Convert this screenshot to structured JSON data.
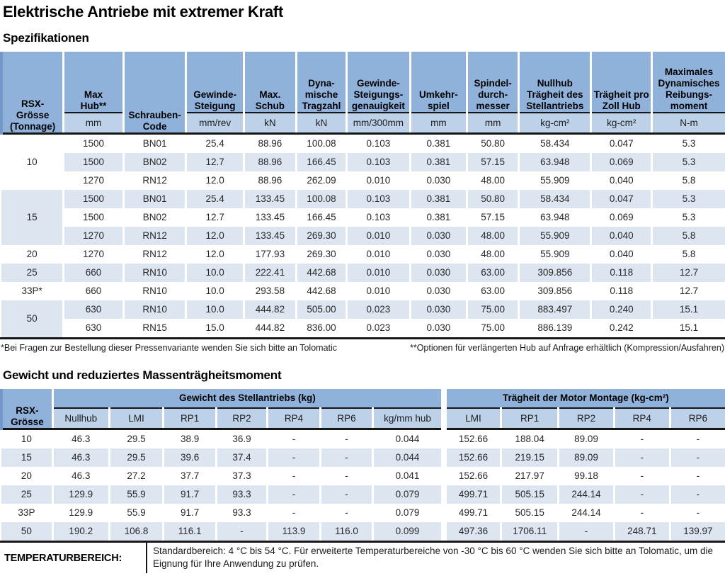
{
  "page": {
    "title": "Elektrische Antriebe mit extremer Kraft",
    "section1_title": "Spezifikationen",
    "section2_title": "Gewicht und reduziertes Massenträgheitsmoment",
    "footnote_left": "*Bei Fragen zur Bestellung dieser Pressenvariante wenden Sie sich bitte an Tolomatic",
    "footnote_right": "**Optionen für verlängerten Hub auf Anfrage erhältlich (Kompression/Ausfahren)",
    "temperature": {
      "label": "TEMPERATURBEREICH:",
      "text": "Standardbereich: 4 °C bis 54 °C. Für erweiterte Temperaturbereiche von -30 °C bis 60 °C wenden Sie sich bitte an Tolomatic, um die Eignung für Ihre Anwendung zu prüfen."
    }
  },
  "colors": {
    "header_blue": "#8FB1DA",
    "unit_blue": "#BDD1E9",
    "stripe_blue": "#DDE5F1",
    "rule_black": "#161616"
  },
  "spec_table": {
    "columns": [
      {
        "label": "RSX-\nGrösse\n(Tonnage)",
        "unit": null
      },
      {
        "label": "Max\nHub**",
        "unit": "mm"
      },
      {
        "label": "Schrauben-\nCode",
        "unit": null
      },
      {
        "label": "Gewinde-\nSteigung",
        "unit": "mm/rev"
      },
      {
        "label": "Max.\nSchub",
        "unit": "kN"
      },
      {
        "label": "Dyna-\nmische\nTragzahl",
        "unit": "kN"
      },
      {
        "label": "Gewinde-\nSteigungs-\ngenauigkeit",
        "unit": "mm/300mm"
      },
      {
        "label": "Umkehr-\nspiel",
        "unit": "mm"
      },
      {
        "label": "Spindel-\ndurch-\nmesser",
        "unit": "mm"
      },
      {
        "label": "Nullhub\nTrägheit des\nStellantriebs",
        "unit": "kg-cm²"
      },
      {
        "label": "Trägheit pro\nZoll Hub",
        "unit": "kg-cm²"
      },
      {
        "label": "Maximales\nDynamisches\nReibungs-\nmoment",
        "unit": "N-m"
      }
    ],
    "groups": [
      {
        "size": "10",
        "rows": [
          [
            "1500",
            "BN01",
            "25.4",
            "88.96",
            "100.08",
            "0.103",
            "0.381",
            "50.80",
            "58.434",
            "0.047",
            "5.3"
          ],
          [
            "1500",
            "BN02",
            "12.7",
            "88.96",
            "166.45",
            "0.103",
            "0.381",
            "57.15",
            "63.948",
            "0.069",
            "5.3"
          ],
          [
            "1270",
            "RN12",
            "12.0",
            "88.96",
            "262.09",
            "0.010",
            "0.030",
            "48.00",
            "55.909",
            "0.040",
            "5.8"
          ]
        ]
      },
      {
        "size": "15",
        "rows": [
          [
            "1500",
            "BN01",
            "25.4",
            "133.45",
            "100.08",
            "0.103",
            "0.381",
            "50.80",
            "58.434",
            "0.047",
            "5.3"
          ],
          [
            "1500",
            "BN02",
            "12.7",
            "133.45",
            "166.45",
            "0.103",
            "0.381",
            "57.15",
            "63.948",
            "0.069",
            "5.3"
          ],
          [
            "1270",
            "RN12",
            "12.0",
            "133.45",
            "269.30",
            "0.010",
            "0.030",
            "48.00",
            "55.909",
            "0.040",
            "5.8"
          ]
        ]
      },
      {
        "size": "20",
        "rows": [
          [
            "1270",
            "RN12",
            "12.0",
            "177.93",
            "269.30",
            "0.010",
            "0.030",
            "48.00",
            "55.909",
            "0.040",
            "5.8"
          ]
        ]
      },
      {
        "size": "25",
        "rows": [
          [
            "660",
            "RN10",
            "10.0",
            "222.41",
            "442.68",
            "0.010",
            "0.030",
            "63.00",
            "309.856",
            "0.118",
            "12.7"
          ]
        ]
      },
      {
        "size": "33P*",
        "rows": [
          [
            "660",
            "RN10",
            "10.0",
            "293.58",
            "442.68",
            "0.010",
            "0.030",
            "63.00",
            "309.856",
            "0.118",
            "12.7"
          ]
        ]
      },
      {
        "size": "50",
        "rows": [
          [
            "630",
            "RN10",
            "10.0",
            "444.82",
            "505.00",
            "0.023",
            "0.030",
            "75.00",
            "883.497",
            "0.240",
            "15.1"
          ],
          [
            "630",
            "RN15",
            "15.0",
            "444.82",
            "836.00",
            "0.023",
            "0.030",
            "75.00",
            "886.139",
            "0.242",
            "15.1"
          ]
        ]
      }
    ]
  },
  "weight_table": {
    "corner_label": "RSX-\nGrösse",
    "group1": {
      "label": "Gewicht des Stellantriebs (kg)",
      "sub": [
        "Nullhub",
        "LMI",
        "RP1",
        "RP2",
        "RP4",
        "RP6",
        "kg/mm hub"
      ]
    },
    "group2": {
      "label": "Trägheit der Motor Montage (kg-cm²)",
      "sub": [
        "LMI",
        "RP1",
        "RP2",
        "RP4",
        "RP6"
      ]
    },
    "rows": [
      {
        "size": "10",
        "weight": [
          "46.3",
          "29.5",
          "38.9",
          "36.9",
          "-",
          "-",
          "0.044"
        ],
        "inertia": [
          "152.66",
          "188.04",
          "89.09",
          "-",
          "-"
        ]
      },
      {
        "size": "15",
        "weight": [
          "46.3",
          "29.5",
          "39.6",
          "37.4",
          "-",
          "-",
          "0.044"
        ],
        "inertia": [
          "152.66",
          "219.15",
          "89.09",
          "-",
          "-"
        ]
      },
      {
        "size": "20",
        "weight": [
          "46.3",
          "27.2",
          "37.7",
          "37.3",
          "-",
          "-",
          "0.041"
        ],
        "inertia": [
          "152.66",
          "217.97",
          "99.18",
          "-",
          "-"
        ]
      },
      {
        "size": "25",
        "weight": [
          "129.9",
          "55.9",
          "91.7",
          "93.3",
          "-",
          "-",
          "0.079"
        ],
        "inertia": [
          "499.71",
          "505.15",
          "244.14",
          "-",
          "-"
        ]
      },
      {
        "size": "33P",
        "weight": [
          "129.9",
          "55.9",
          "91.7",
          "93.3",
          "-",
          "-",
          "0.079"
        ],
        "inertia": [
          "499.71",
          "505.15",
          "244.14",
          "-",
          "-"
        ]
      },
      {
        "size": "50",
        "weight": [
          "190.2",
          "106.8",
          "116.1",
          "-",
          "113.9",
          "116.0",
          "0.099"
        ],
        "inertia": [
          "497.36",
          "1706.11",
          "-",
          "248.71",
          "139.97"
        ]
      }
    ]
  }
}
